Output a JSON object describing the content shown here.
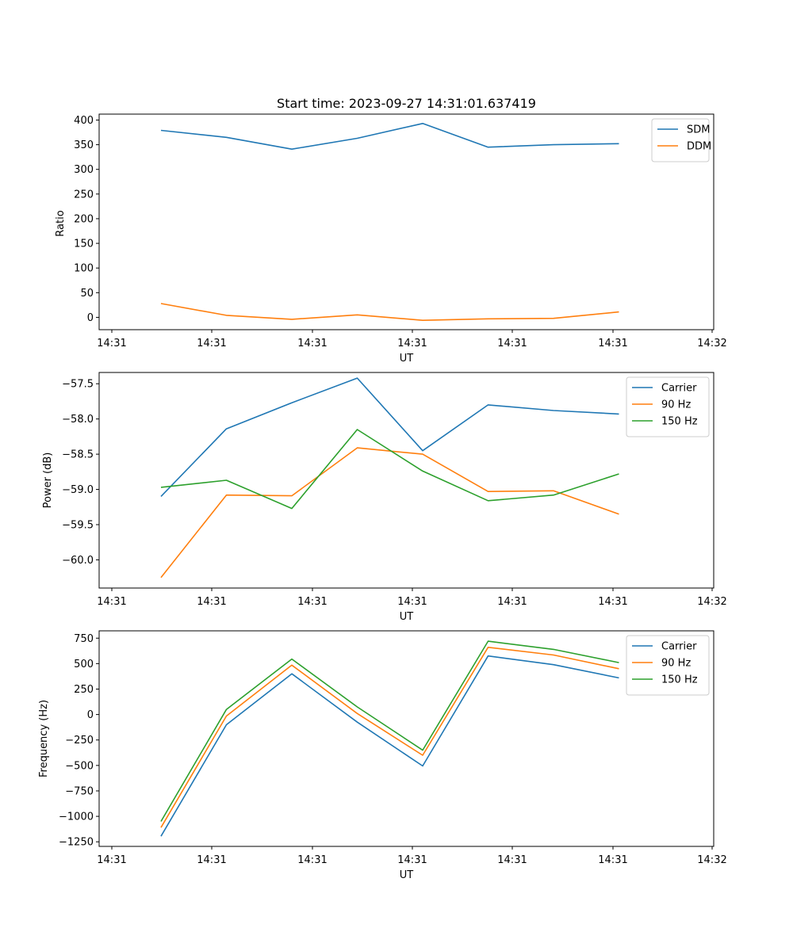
{
  "chart_data": [
    {
      "type": "line",
      "title": "Start time: 2023-09-27 14:31:01.637419",
      "xlabel": "UT",
      "ylabel": "Ratio",
      "x_tick_labels": [
        "14:31",
        "14:31",
        "14:31",
        "14:31",
        "14:31",
        "14:31",
        "14:31",
        "14:32"
      ],
      "ylim": [
        -25,
        412
      ],
      "y_ticks": [
        0,
        50,
        100,
        150,
        200,
        250,
        300,
        350,
        400
      ],
      "y_tick_labels": [
        "0",
        "50",
        "100",
        "150",
        "200",
        "250",
        "300",
        "350",
        "400"
      ],
      "legend_position": "top-right",
      "series": [
        {
          "name": "SDM",
          "color": "#1f77b4",
          "values": [
            379,
            365,
            341,
            363,
            393,
            345,
            350,
            352
          ]
        },
        {
          "name": "DDM",
          "color": "#ff7f0e",
          "values": [
            28,
            4,
            -4,
            5,
            -6,
            -3,
            -2,
            11
          ]
        }
      ]
    },
    {
      "type": "line",
      "title": "",
      "xlabel": "UT",
      "ylabel": "Power (dB)",
      "x_tick_labels": [
        "14:31",
        "14:31",
        "14:31",
        "14:31",
        "14:31",
        "14:31",
        "14:31",
        "14:32"
      ],
      "ylim": [
        -60.4,
        -57.34
      ],
      "y_ticks": [
        -60.0,
        -59.5,
        -59.0,
        -58.5,
        -58.0,
        -57.5
      ],
      "y_tick_labels": [
        "−60.0",
        "−59.5",
        "−59.0",
        "−58.5",
        "−58.0",
        "−57.5"
      ],
      "legend_position": "top-right",
      "series": [
        {
          "name": "Carrier",
          "color": "#1f77b4",
          "values": [
            -59.1,
            -58.14,
            -57.77,
            -57.42,
            -58.45,
            -57.8,
            -57.88,
            -57.93
          ]
        },
        {
          "name": "90 Hz",
          "color": "#ff7f0e",
          "values": [
            -60.25,
            -59.08,
            -59.09,
            -58.41,
            -58.5,
            -59.03,
            -59.02,
            -59.35
          ]
        },
        {
          "name": "150 Hz",
          "color": "#2ca02c",
          "values": [
            -58.97,
            -58.87,
            -59.27,
            -58.15,
            -58.74,
            -59.16,
            -59.08,
            -58.78
          ]
        }
      ]
    },
    {
      "type": "line",
      "title": "",
      "xlabel": "UT",
      "ylabel": "Frequency (Hz)",
      "x_tick_labels": [
        "14:31",
        "14:31",
        "14:31",
        "14:31",
        "14:31",
        "14:31",
        "14:31",
        "14:32"
      ],
      "ylim": [
        -1295,
        822
      ],
      "y_ticks": [
        -1250,
        -1000,
        -750,
        -500,
        -250,
        0,
        250,
        500,
        750
      ],
      "y_tick_labels": [
        "−1250",
        "−1000",
        "−750",
        "−500",
        "−250",
        "0",
        "250",
        "500",
        "750"
      ],
      "legend_position": "top-right",
      "series": [
        {
          "name": "Carrier",
          "color": "#1f77b4",
          "values": [
            -1195,
            -100,
            400,
            -75,
            -505,
            575,
            490,
            360
          ]
        },
        {
          "name": "90 Hz",
          "color": "#ff7f0e",
          "values": [
            -1110,
            -15,
            485,
            10,
            -400,
            660,
            585,
            450
          ]
        },
        {
          "name": "150 Hz",
          "color": "#2ca02c",
          "values": [
            -1050,
            50,
            545,
            75,
            -350,
            720,
            640,
            510
          ]
        }
      ]
    }
  ]
}
